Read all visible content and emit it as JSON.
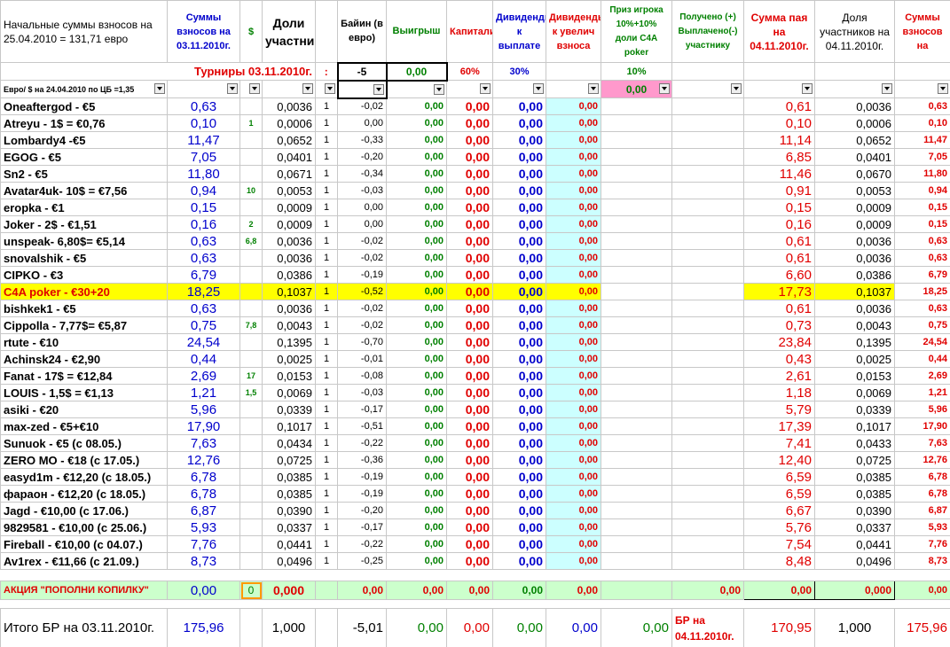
{
  "header": {
    "columns": [
      "Начальные суммы взносов на 25.04.2010 = 131,71 евро",
      "Суммы взносов на 03.11.2010г.",
      "$",
      "Доли участников",
      null,
      "Байин (в евро)",
      "Выигрыш",
      "Капитализация",
      "Дивиденды к выплате",
      "Дивиденды к увелич взноса",
      "Приз игрока 10%+10% доли C4A poker",
      "Получено (+) Выплачено(-) участнику",
      "Сумма пая на 04.11.2010г.",
      "Доля участников на 04.11.2010г.",
      "Суммы взносов на"
    ]
  },
  "tournaments": {
    "label": "Турниры 03.11.2010г.",
    "colon": ":",
    "buyin": "-5",
    "winnings": "0,00",
    "capitalization": "60%",
    "dividends": "30%",
    "prize": "10%"
  },
  "filter": {
    "rate": "Евро/ $ на 24.04.2010 по ЦБ =1,35",
    "prize": "0,00"
  },
  "table": {
    "rows": [
      [
        "Oneaftergod - €5",
        "0,63",
        null,
        "0,0036",
        "1",
        "-0,02",
        "0,00",
        "0,00",
        "0,00",
        "0,00",
        null,
        null,
        "0,61",
        "0,0036",
        "0,63"
      ],
      [
        "Atreyu - 1$ = €0,76",
        "0,10",
        "1",
        "0,0006",
        "1",
        "0,00",
        "0,00",
        "0,00",
        "0,00",
        "0,00",
        null,
        null,
        "0,10",
        "0,0006",
        "0,10"
      ],
      [
        "Lombardy4 -€5",
        "11,47",
        null,
        "0,0652",
        "1",
        "-0,33",
        "0,00",
        "0,00",
        "0,00",
        "0,00",
        null,
        null,
        "11,14",
        "0,0652",
        "11,47"
      ],
      [
        "EGOG - €5",
        "7,05",
        null,
        "0,0401",
        "1",
        "-0,20",
        "0,00",
        "0,00",
        "0,00",
        "0,00",
        null,
        null,
        "6,85",
        "0,0401",
        "7,05"
      ],
      [
        "Sn2 - €5",
        "11,80",
        null,
        "0,0671",
        "1",
        "-0,34",
        "0,00",
        "0,00",
        "0,00",
        "0,00",
        null,
        null,
        "11,46",
        "0,0670",
        "11,80"
      ],
      [
        "Avatar4uk- 10$ = €7,56",
        "0,94",
        "10",
        "0,0053",
        "1",
        "-0,03",
        "0,00",
        "0,00",
        "0,00",
        "0,00",
        null,
        null,
        "0,91",
        "0,0053",
        "0,94"
      ],
      [
        "eropka - €1",
        "0,15",
        null,
        "0,0009",
        "1",
        "0,00",
        "0,00",
        "0,00",
        "0,00",
        "0,00",
        null,
        null,
        "0,15",
        "0,0009",
        "0,15"
      ],
      [
        "Joker - 2$ - €1,51",
        "0,16",
        "2",
        "0,0009",
        "1",
        "0,00",
        "0,00",
        "0,00",
        "0,00",
        "0,00",
        null,
        null,
        "0,16",
        "0,0009",
        "0,15"
      ],
      [
        "unspeak- 6,80$= €5,14",
        "0,63",
        "6,8",
        "0,0036",
        "1",
        "-0,02",
        "0,00",
        "0,00",
        "0,00",
        "0,00",
        null,
        null,
        "0,61",
        "0,0036",
        "0,63"
      ],
      [
        "snovalshik - €5",
        "0,63",
        null,
        "0,0036",
        "1",
        "-0,02",
        "0,00",
        "0,00",
        "0,00",
        "0,00",
        null,
        null,
        "0,61",
        "0,0036",
        "0,63"
      ],
      [
        "CIPKO - €3",
        "6,79",
        null,
        "0,0386",
        "1",
        "-0,19",
        "0,00",
        "0,00",
        "0,00",
        "0,00",
        null,
        null,
        "6,60",
        "0,0386",
        "6,79"
      ],
      [
        "C4A poker - €30+20",
        "18,25",
        null,
        "0,1037",
        "1",
        "-0,52",
        "0,00",
        "0,00",
        "0,00",
        "0,00",
        null,
        null,
        "17,73",
        "0,1037",
        "18,25"
      ],
      [
        "bishkek1 - €5",
        "0,63",
        null,
        "0,0036",
        "1",
        "-0,02",
        "0,00",
        "0,00",
        "0,00",
        "0,00",
        null,
        null,
        "0,61",
        "0,0036",
        "0,63"
      ],
      [
        "Cippolla - 7,77$= €5,87",
        "0,75",
        "7,8",
        "0,0043",
        "1",
        "-0,02",
        "0,00",
        "0,00",
        "0,00",
        "0,00",
        null,
        null,
        "0,73",
        "0,0043",
        "0,75"
      ],
      [
        "rtute - €10",
        "24,54",
        null,
        "0,1395",
        "1",
        "-0,70",
        "0,00",
        "0,00",
        "0,00",
        "0,00",
        null,
        null,
        "23,84",
        "0,1395",
        "24,54"
      ],
      [
        "Achinsk24 -  €2,90",
        "0,44",
        null,
        "0,0025",
        "1",
        "-0,01",
        "0,00",
        "0,00",
        "0,00",
        "0,00",
        null,
        null,
        "0,43",
        "0,0025",
        "0,44"
      ],
      [
        "Fanat - 17$ = €12,84",
        "2,69",
        "17",
        "0,0153",
        "1",
        "-0,08",
        "0,00",
        "0,00",
        "0,00",
        "0,00",
        null,
        null,
        "2,61",
        "0,0153",
        "2,69"
      ],
      [
        "LOUIS - 1,5$ = €1,13",
        "1,21",
        "1,5",
        "0,0069",
        "1",
        "-0,03",
        "0,00",
        "0,00",
        "0,00",
        "0,00",
        null,
        null,
        "1,18",
        "0,0069",
        "1,21"
      ],
      [
        "asiki - €20",
        "5,96",
        null,
        "0,0339",
        "1",
        "-0,17",
        "0,00",
        "0,00",
        "0,00",
        "0,00",
        null,
        null,
        "5,79",
        "0,0339",
        "5,96"
      ],
      [
        "max-zed - €5+€10",
        "17,90",
        null,
        "0,1017",
        "1",
        "-0,51",
        "0,00",
        "0,00",
        "0,00",
        "0,00",
        null,
        null,
        "17,39",
        "0,1017",
        "17,90"
      ],
      [
        "Sunuok - €5 (с 08.05.)",
        "7,63",
        null,
        "0,0434",
        "1",
        "-0,22",
        "0,00",
        "0,00",
        "0,00",
        "0,00",
        null,
        null,
        "7,41",
        "0,0433",
        "7,63"
      ],
      [
        "ZERO MO - €18 (с 17.05.)",
        "12,76",
        null,
        "0,0725",
        "1",
        "-0,36",
        "0,00",
        "0,00",
        "0,00",
        "0,00",
        null,
        null,
        "12,40",
        "0,0725",
        "12,76"
      ],
      [
        "easyd1m - €12,20 (с 18.05.)",
        "6,78",
        null,
        "0,0385",
        "1",
        "-0,19",
        "0,00",
        "0,00",
        "0,00",
        "0,00",
        null,
        null,
        "6,59",
        "0,0385",
        "6,78"
      ],
      [
        "фараон - €12,20 (с 18.05.)",
        "6,78",
        null,
        "0,0385",
        "1",
        "-0,19",
        "0,00",
        "0,00",
        "0,00",
        "0,00",
        null,
        null,
        "6,59",
        "0,0385",
        "6,78"
      ],
      [
        "Jagd - €10,00 (с 17.06.)",
        "6,87",
        null,
        "0,0390",
        "1",
        "-0,20",
        "0,00",
        "0,00",
        "0,00",
        "0,00",
        null,
        null,
        "6,67",
        "0,0390",
        "6,87"
      ],
      [
        "9829581 - €10,00 (с 25.06.)",
        "5,93",
        null,
        "0,0337",
        "1",
        "-0,17",
        "0,00",
        "0,00",
        "0,00",
        "0,00",
        null,
        null,
        "5,76",
        "0,0337",
        "5,93"
      ],
      [
        "Fireball - €10,00 (с 04.07.)",
        "7,76",
        null,
        "0,0441",
        "1",
        "-0,22",
        "0,00",
        "0,00",
        "0,00",
        "0,00",
        null,
        null,
        "7,54",
        "0,0441",
        "7,76"
      ],
      [
        "Av1rex - €11,66 (с 21.09.)",
        "8,73",
        null,
        "0,0496",
        "1",
        "-0,25",
        "0,00",
        "0,00",
        "0,00",
        "0,00",
        null,
        null,
        "8,48",
        "0,0496",
        "8,73"
      ]
    ]
  },
  "promo": [
    "АКЦИЯ \"ПОПОЛНИ КОПИЛКУ\"",
    "0,00",
    "0",
    "0,000",
    null,
    "0,00",
    "0,00",
    "0,00",
    "0,00",
    "0,00",
    null,
    "0,00",
    "0,00",
    "0,000",
    "0,00"
  ],
  "total": [
    "Итого БР на 03.11.2010г.",
    "175,96",
    null,
    "1,000",
    null,
    "-5,01",
    "0,00",
    "0,00",
    "0,00",
    "0,00",
    "0,00",
    "БР на 04.11.2010г.",
    "170,95",
    "1,000",
    "175,96"
  ]
}
